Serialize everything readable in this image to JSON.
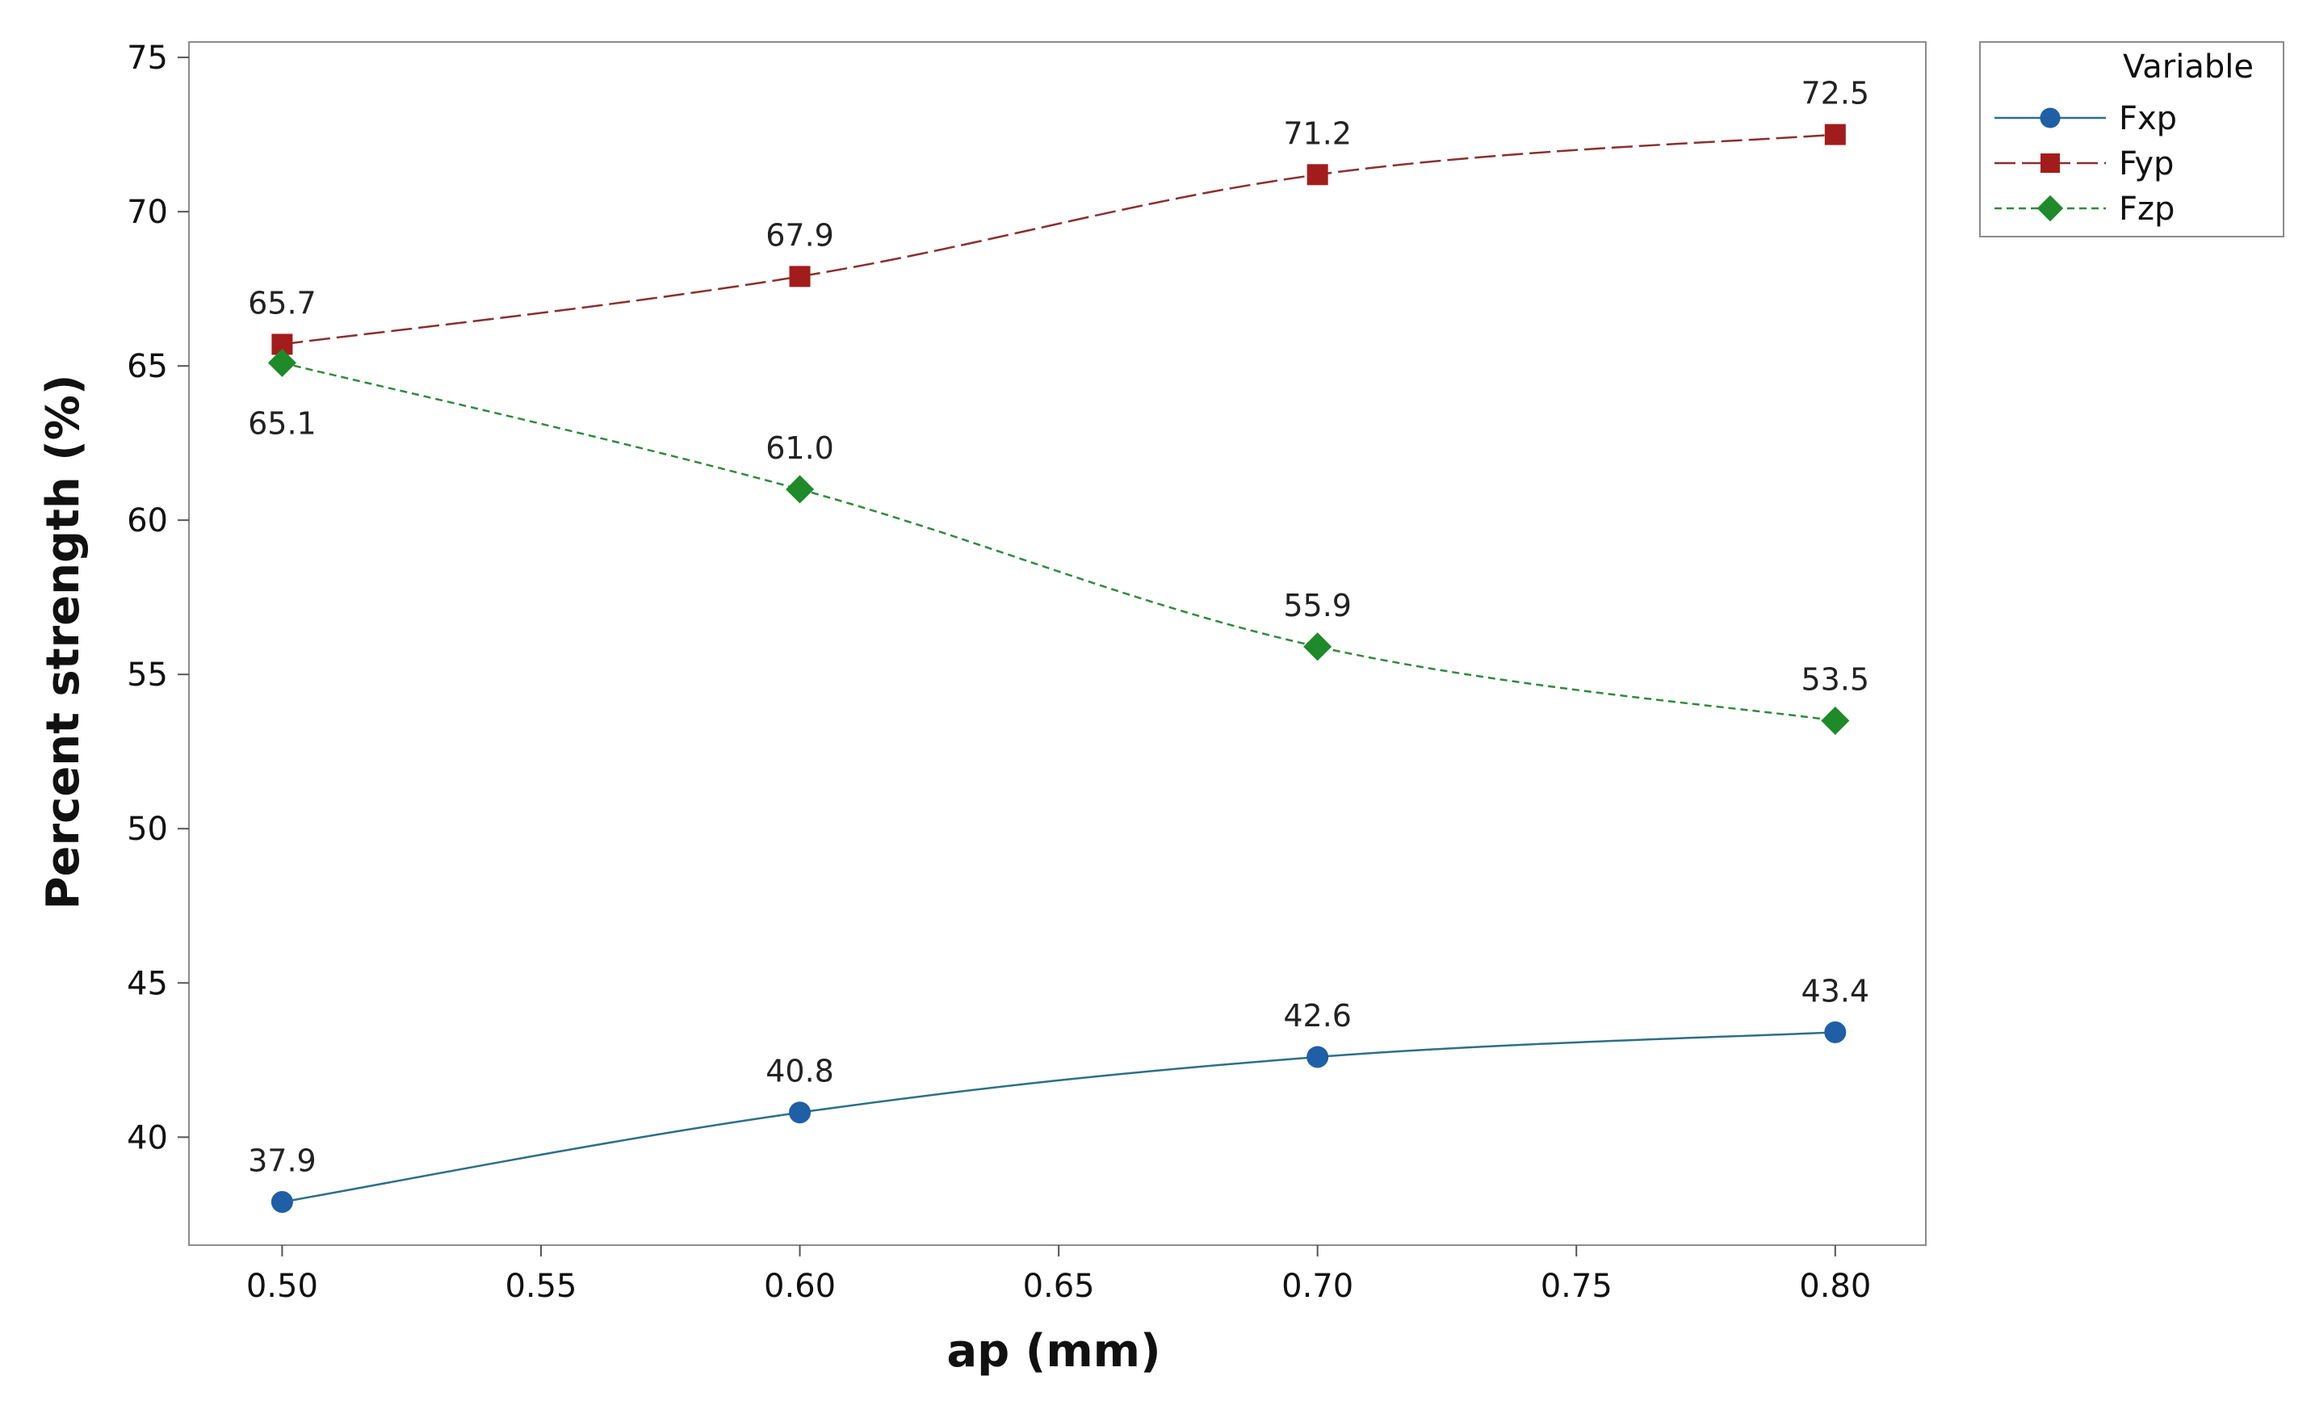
{
  "chart_data": {
    "type": "line",
    "title": "",
    "xlabel": "ap (mm)",
    "ylabel": "Percent strength (%)",
    "x": [
      0.5,
      0.6,
      0.7,
      0.8
    ],
    "xlim": [
      0.482,
      0.8175
    ],
    "ylim": [
      36.5,
      75.5
    ],
    "xticks": [
      0.5,
      0.55,
      0.6,
      0.65,
      0.7,
      0.75,
      0.8
    ],
    "xtick_labels": [
      "0.50",
      "0.55",
      "0.60",
      "0.65",
      "0.70",
      "0.75",
      "0.80"
    ],
    "yticks": [
      40,
      45,
      50,
      55,
      60,
      65,
      70,
      75
    ],
    "ytick_labels": [
      "40",
      "45",
      "50",
      "55",
      "60",
      "65",
      "70",
      "75"
    ],
    "grid": false,
    "legend": {
      "title": "Variable",
      "placement": "right-outside-top"
    },
    "series": [
      {
        "name": "Fxp",
        "values": [
          37.9,
          40.8,
          42.6,
          43.4
        ],
        "labels": [
          "37.9",
          "40.8",
          "42.6",
          "43.4"
        ],
        "color": "#1f5fa6",
        "line_color": "#2d6f86",
        "marker": "circle",
        "line_style": "solid",
        "label_position": "above"
      },
      {
        "name": "Fyp",
        "values": [
          65.7,
          67.9,
          71.2,
          72.5
        ],
        "labels": [
          "65.7",
          "67.9",
          "71.2",
          "72.5"
        ],
        "color": "#a31c1c",
        "line_color": "#8a2f2f",
        "marker": "square",
        "line_style": "dashed",
        "label_position": "above"
      },
      {
        "name": "Fzp",
        "values": [
          65.1,
          61.0,
          55.9,
          53.5
        ],
        "labels": [
          "65.1",
          "61.0",
          "55.9",
          "53.5"
        ],
        "color": "#1e8a2a",
        "line_color": "#2f8a3a",
        "marker": "diamond",
        "line_style": "dotted",
        "label_position": [
          "below",
          "above",
          "above",
          "above"
        ]
      }
    ]
  }
}
